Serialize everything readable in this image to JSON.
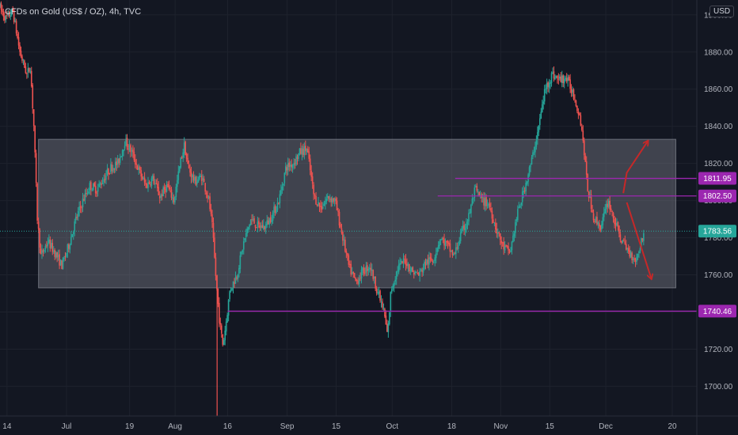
{
  "header": {
    "title": "CFDs on Gold (US$ / OZ), 4h, TVC",
    "currency": "USD"
  },
  "colors": {
    "background": "#131722",
    "grid": "#1e222d",
    "up": "#26a69a",
    "down": "#ef5350",
    "range_box": "#787b86",
    "level": "#9c27b0",
    "level_badge": "#9c27b0",
    "last_price": "#26a69a",
    "arrow": "#c62828"
  },
  "chart_data": {
    "type": "candlestick",
    "timeframe": "4h",
    "y_ticks": [
      1700,
      1720,
      1740,
      1760,
      1780,
      1800,
      1820,
      1840,
      1860,
      1880,
      1900
    ],
    "y_tick_labels": [
      "1700.00",
      "1720.00",
      "1740.00",
      "1760.00",
      "1780.00",
      "1800.00",
      "1820.00",
      "1840.00",
      "1860.00",
      "1880.00",
      "1900.00"
    ],
    "ylim": [
      1684,
      1908
    ],
    "x_ticks": [
      {
        "label": "14",
        "day": 0
      },
      {
        "label": "Jul",
        "day": 17
      },
      {
        "label": "19",
        "day": 35
      },
      {
        "label": "Aug",
        "day": 48
      },
      {
        "label": "16",
        "day": 63
      },
      {
        "label": "Sep",
        "day": 80
      },
      {
        "label": "15",
        "day": 94
      },
      {
        "label": "Oct",
        "day": 110
      },
      {
        "label": "18",
        "day": 127
      },
      {
        "label": "Nov",
        "day": 141
      },
      {
        "label": "15",
        "day": 155
      },
      {
        "label": "Dec",
        "day": 171
      },
      {
        "label": "20",
        "day": 190
      }
    ],
    "xlim": [
      -2,
      197
    ],
    "price_path": [
      [
        -2,
        1905
      ],
      [
        0,
        1898
      ],
      [
        2,
        1902
      ],
      [
        4,
        1880
      ],
      [
        6,
        1868
      ],
      [
        7,
        1872
      ],
      [
        8,
        1840
      ],
      [
        9,
        1790
      ],
      [
        10,
        1770
      ],
      [
        12,
        1778
      ],
      [
        14,
        1772
      ],
      [
        16,
        1765
      ],
      [
        18,
        1776
      ],
      [
        20,
        1790
      ],
      [
        22,
        1800
      ],
      [
        24,
        1808
      ],
      [
        26,
        1806
      ],
      [
        28,
        1812
      ],
      [
        30,
        1818
      ],
      [
        32,
        1820
      ],
      [
        34,
        1832
      ],
      [
        36,
        1826
      ],
      [
        38,
        1816
      ],
      [
        40,
        1808
      ],
      [
        42,
        1812
      ],
      [
        44,
        1802
      ],
      [
        46,
        1808
      ],
      [
        48,
        1800
      ],
      [
        50,
        1822
      ],
      [
        51,
        1830
      ],
      [
        52,
        1818
      ],
      [
        54,
        1810
      ],
      [
        56,
        1813
      ],
      [
        58,
        1800
      ],
      [
        59,
        1785
      ],
      [
        60,
        1758
      ],
      [
        61,
        1735
      ],
      [
        62,
        1722
      ],
      [
        63,
        1736
      ],
      [
        64,
        1752
      ],
      [
        66,
        1760
      ],
      [
        68,
        1778
      ],
      [
        70,
        1790
      ],
      [
        72,
        1786
      ],
      [
        74,
        1786
      ],
      [
        76,
        1792
      ],
      [
        78,
        1800
      ],
      [
        80,
        1818
      ],
      [
        82,
        1820
      ],
      [
        84,
        1826
      ],
      [
        86,
        1828
      ],
      [
        88,
        1802
      ],
      [
        90,
        1796
      ],
      [
        92,
        1802
      ],
      [
        94,
        1800
      ],
      [
        96,
        1782
      ],
      [
        98,
        1764
      ],
      [
        100,
        1756
      ],
      [
        102,
        1762
      ],
      [
        104,
        1765
      ],
      [
        106,
        1752
      ],
      [
        108,
        1740
      ],
      [
        109,
        1727
      ],
      [
        110,
        1752
      ],
      [
        112,
        1764
      ],
      [
        114,
        1768
      ],
      [
        116,
        1762
      ],
      [
        118,
        1760
      ],
      [
        120,
        1767
      ],
      [
        122,
        1768
      ],
      [
        124,
        1780
      ],
      [
        126,
        1776
      ],
      [
        128,
        1770
      ],
      [
        130,
        1782
      ],
      [
        132,
        1790
      ],
      [
        134,
        1806
      ],
      [
        136,
        1800
      ],
      [
        138,
        1798
      ],
      [
        140,
        1785
      ],
      [
        142,
        1775
      ],
      [
        144,
        1772
      ],
      [
        146,
        1792
      ],
      [
        148,
        1806
      ],
      [
        150,
        1820
      ],
      [
        152,
        1838
      ],
      [
        154,
        1860
      ],
      [
        156,
        1868
      ],
      [
        158,
        1865
      ],
      [
        160,
        1866
      ],
      [
        162,
        1858
      ],
      [
        164,
        1845
      ],
      [
        165,
        1830
      ],
      [
        166,
        1808
      ],
      [
        168,
        1790
      ],
      [
        170,
        1786
      ],
      [
        172,
        1800
      ],
      [
        174,
        1788
      ],
      [
        176,
        1778
      ],
      [
        178,
        1772
      ],
      [
        180,
        1768
      ],
      [
        182,
        1782
      ]
    ],
    "range_box": {
      "x0": 9,
      "x1": 191,
      "y_top": 1833,
      "y_bottom": 1753
    },
    "levels": [
      {
        "value": 1811.95,
        "label": "1811.95",
        "x0": 128
      },
      {
        "value": 1802.5,
        "label": "1802.50",
        "x0": 123
      },
      {
        "value": 1740.46,
        "label": "1740.46",
        "x0": 63
      }
    ],
    "last_price": {
      "value": 1783.56,
      "label": "1783.56"
    },
    "arrows": [
      {
        "from": [
          176,
          1804
        ],
        "via": [
          177,
          1815
        ],
        "to": [
          183,
          1832
        ]
      },
      {
        "from": [
          177,
          1799
        ],
        "to": [
          184,
          1758
        ]
      }
    ]
  }
}
